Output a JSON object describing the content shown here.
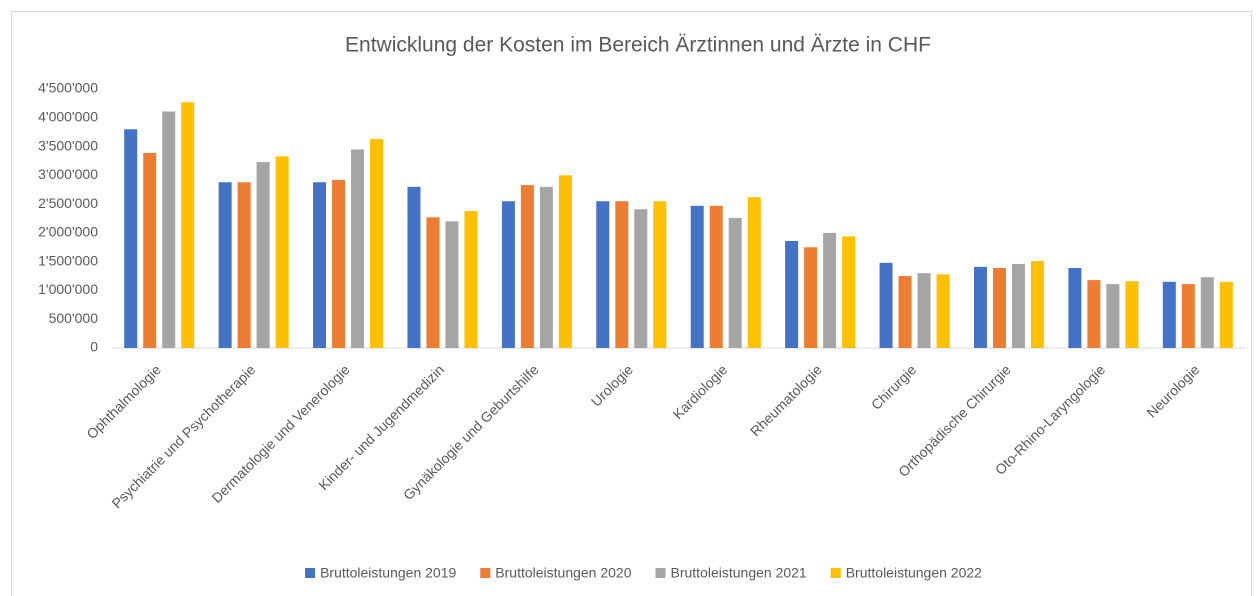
{
  "chart_data": {
    "type": "bar",
    "title": "Entwicklung der Kosten im Bereich Ärztinnen und Ärzte in CHF",
    "categories": [
      "Ophthalmologie",
      "Psychiatrie und Psychotherapie",
      "Dermatologie und Venerologie",
      "Kinder- und Jugendmedizin",
      "Gynäkologie und Geburtshilfe",
      "Urologie",
      "Kardiologie",
      "Rheumatologie",
      "Chirurgie",
      "Orthopädische Chirurgie",
      "Oto-Rhino-Laryngologie",
      "Neurologie"
    ],
    "series": [
      {
        "name": "Bruttoleistungen 2019",
        "color": "#4472c4",
        "values": [
          3800000,
          2880000,
          2880000,
          2800000,
          2550000,
          2550000,
          2470000,
          1860000,
          1480000,
          1410000,
          1390000,
          1150000
        ]
      },
      {
        "name": "Bruttoleistungen 2020",
        "color": "#ed7d31",
        "values": [
          3390000,
          2880000,
          2920000,
          2270000,
          2830000,
          2550000,
          2470000,
          1750000,
          1250000,
          1390000,
          1180000,
          1110000
        ]
      },
      {
        "name": "Bruttoleistungen 2021",
        "color": "#a5a5a5",
        "values": [
          4110000,
          3230000,
          3450000,
          2200000,
          2800000,
          2410000,
          2260000,
          2000000,
          1300000,
          1460000,
          1110000,
          1230000
        ]
      },
      {
        "name": "Bruttoleistungen 2022",
        "color": "#ffc000",
        "values": [
          4270000,
          3330000,
          3630000,
          2380000,
          3000000,
          2550000,
          2620000,
          1940000,
          1280000,
          1510000,
          1160000,
          1150000
        ]
      }
    ],
    "ylim": [
      0,
      4500000
    ],
    "yticks": [
      0,
      {
        "value": 500000,
        "label": "500'000"
      },
      {
        "value": 1000000,
        "label": "1'000'000"
      },
      {
        "value": 1500000,
        "label": "1'500'000"
      },
      {
        "value": 2000000,
        "label": "2'000'000"
      },
      {
        "value": 2500000,
        "label": "2'500'000"
      },
      {
        "value": 3000000,
        "label": "3'000'000"
      },
      {
        "value": 3500000,
        "label": "3'500'000"
      },
      {
        "value": 4000000,
        "label": "4'000'000"
      },
      {
        "value": 4500000,
        "label": {
          "value": 4500000,
          "label": "4'500'000"
        }
      }
    ],
    "grid": false,
    "legend": "bottom"
  }
}
